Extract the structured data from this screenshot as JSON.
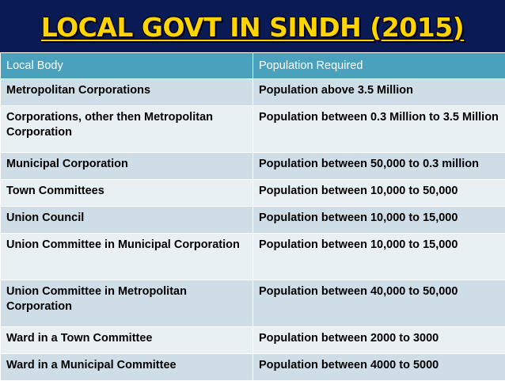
{
  "title": "LOCAL GOVT IN SINDH (2015)",
  "table": {
    "headers": [
      "Local Body",
      "Population Required"
    ],
    "rows": [
      [
        "Metropolitan Corporations",
        "Population above 3.5 Million"
      ],
      [
        "Corporations, other then Metropolitan Corporation",
        "Population between 0.3 Million to 3.5 Million"
      ],
      [
        "Municipal Corporation",
        "Population between 50,000 to 0.3 million"
      ],
      [
        "Town Committees",
        "Population between 10,000 to 50,000"
      ],
      [
        "Union Council",
        "Population between 10,000 to 15,000"
      ],
      [
        "Union Committee in Municipal Corporation",
        "Population between 10,000 to 15,000"
      ],
      [
        "Union Committee in Metropolitan Corporation",
        "Population between 40,000 to 50,000"
      ],
      [
        "Ward in a Town Committee",
        "Population between 2000 to 3000"
      ],
      [
        "Ward in a Municipal Committee",
        "Population between  4000 to 5000"
      ]
    ]
  },
  "colors": {
    "background": "#0a1a55",
    "title": "#ffd400",
    "header_row": "#4aa1bd",
    "row_odd": "#cfdee6",
    "row_even": "#e9f0f4"
  }
}
